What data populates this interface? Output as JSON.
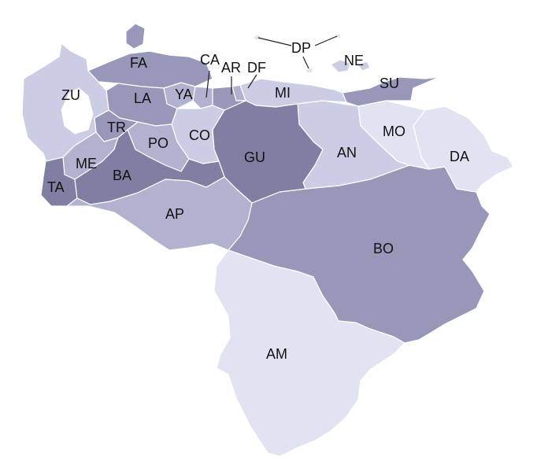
{
  "palette": {
    "c1": "#e2e3f2",
    "c2": "#cbcde4",
    "c3": "#b0b2cf",
    "c4": "#9697b9",
    "c5": "#7e7fa2"
  },
  "states": {
    "ZU": {
      "label": "ZU",
      "shade": "c2"
    },
    "FA": {
      "label": "FA",
      "shade": "c4"
    },
    "LA": {
      "label": "LA",
      "shade": "c4"
    },
    "YA": {
      "label": "YA",
      "shade": "c3"
    },
    "CA": {
      "label": "CA",
      "shade": "c3"
    },
    "AR": {
      "label": "AR",
      "shade": "c4"
    },
    "DF": {
      "label": "DF",
      "shade": "c3"
    },
    "MI": {
      "label": "MI",
      "shade": "c2"
    },
    "DP": {
      "label": "DP",
      "shade": "c1"
    },
    "NE": {
      "label": "NE",
      "shade": "c2"
    },
    "SU": {
      "label": "SU",
      "shade": "c4"
    },
    "TR": {
      "label": "TR",
      "shade": "c4"
    },
    "PO": {
      "label": "PO",
      "shade": "c3"
    },
    "CO": {
      "label": "CO",
      "shade": "c2"
    },
    "GU": {
      "label": "GU",
      "shade": "c5"
    },
    "AN": {
      "label": "AN",
      "shade": "c2"
    },
    "MO": {
      "label": "MO",
      "shade": "c1"
    },
    "DA": {
      "label": "DA",
      "shade": "c1"
    },
    "ME": {
      "label": "ME",
      "shade": "c3"
    },
    "BA": {
      "label": "BA",
      "shade": "c5"
    },
    "TA": {
      "label": "TA",
      "shade": "c5"
    },
    "AP": {
      "label": "AP",
      "shade": "c3"
    },
    "BO": {
      "label": "BO",
      "shade": "c4"
    },
    "AM": {
      "label": "AM",
      "shade": "c1"
    }
  }
}
